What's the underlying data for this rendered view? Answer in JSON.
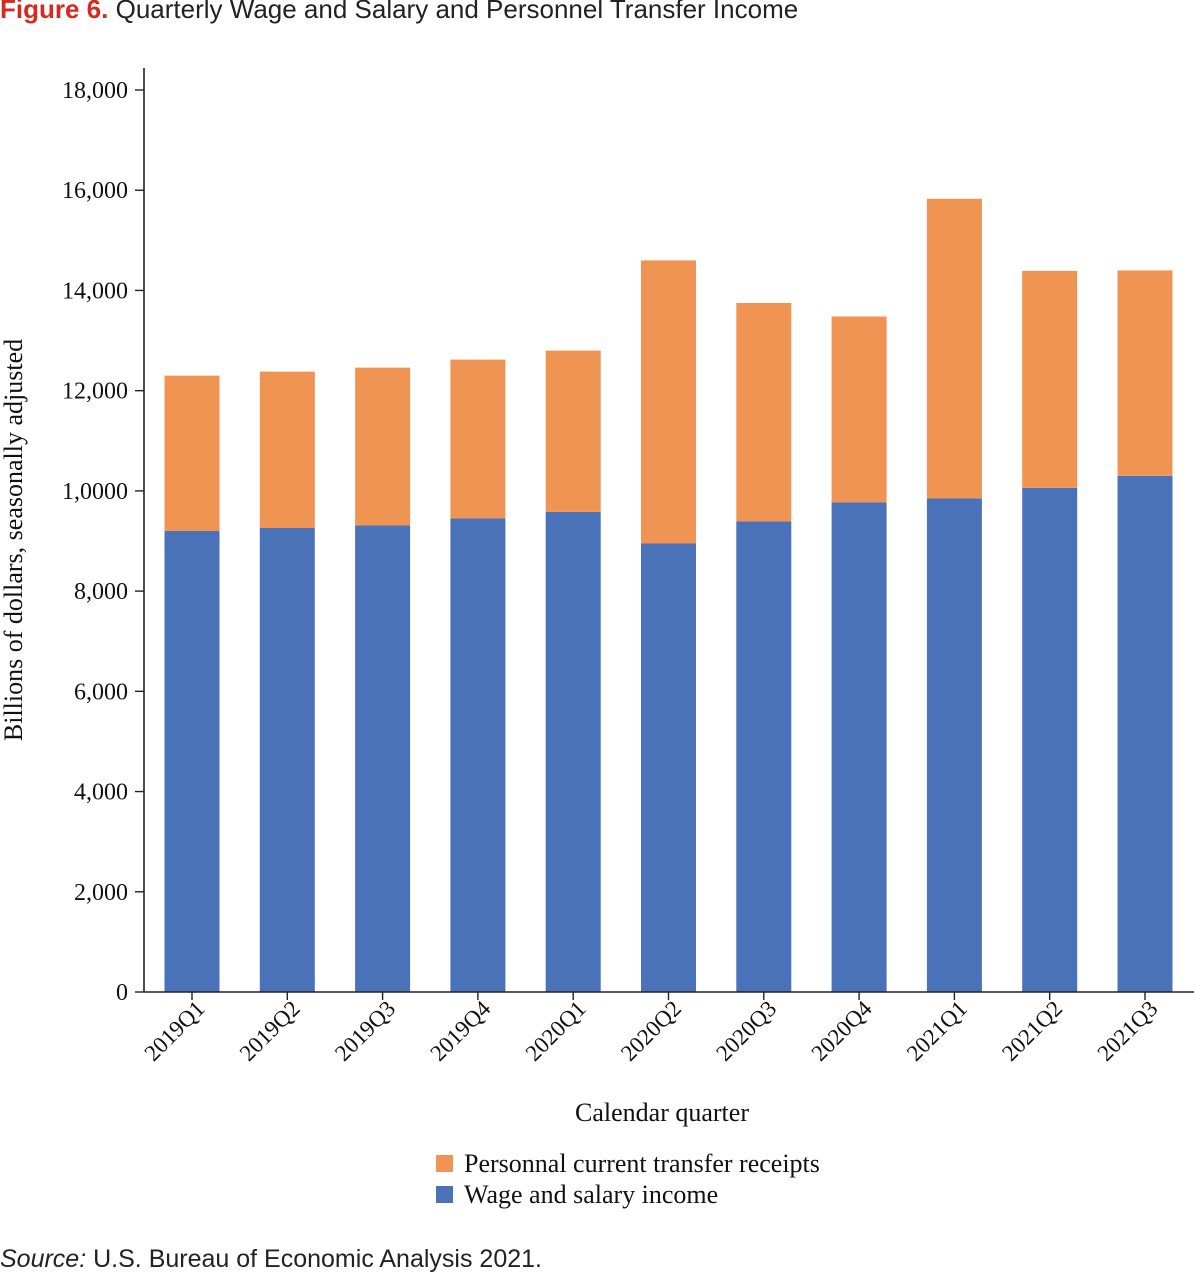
{
  "figure": {
    "label": "Figure 6.",
    "title": "Quarterly Wage and Salary and Personnel Transfer Income"
  },
  "source": {
    "label": "Source:",
    "text": "U.S. Bureau of Economic Analysis 2021."
  },
  "colors": {
    "wage": "#4a72b8",
    "transfer": "#f09454",
    "axis": "#222222",
    "title_label": "#d52b1e"
  },
  "chart_data": {
    "type": "bar",
    "stacked": true,
    "title": "Quarterly Wage and Salary and Personnel Transfer Income",
    "xlabel": "Calendar quarter",
    "ylabel": "Billions of dollars, seasonally adjusted",
    "ylim": [
      0,
      18000
    ],
    "yticks": [
      0,
      2000,
      4000,
      6000,
      8000,
      10000,
      12000,
      14000,
      16000,
      18000
    ],
    "ytick_labels": [
      "0",
      "2,000",
      "4,000",
      "6,000",
      "8,000",
      "1,0000",
      "12,000",
      "14,000",
      "16,000",
      "18,000"
    ],
    "categories": [
      "2019Q1",
      "2019Q2",
      "2019Q3",
      "2019Q4",
      "2020Q1",
      "2020Q2",
      "2020Q3",
      "2020Q4",
      "2021Q1",
      "2021Q2",
      "2021Q3"
    ],
    "series": [
      {
        "name": "Wage and salary income",
        "color": "#4a72b8",
        "values": [
          9200,
          9260,
          9310,
          9450,
          9580,
          8950,
          9390,
          9770,
          9850,
          10060,
          10300
        ]
      },
      {
        "name": "Personnal current transfer receipts",
        "color": "#f09454",
        "values": [
          3100,
          3120,
          3150,
          3170,
          3220,
          5650,
          4360,
          3710,
          5980,
          4330,
          4100
        ]
      }
    ],
    "legend": {
      "position": "bottom",
      "order": [
        "Personnal current transfer receipts",
        "Wage and salary income"
      ]
    },
    "grid": false
  }
}
